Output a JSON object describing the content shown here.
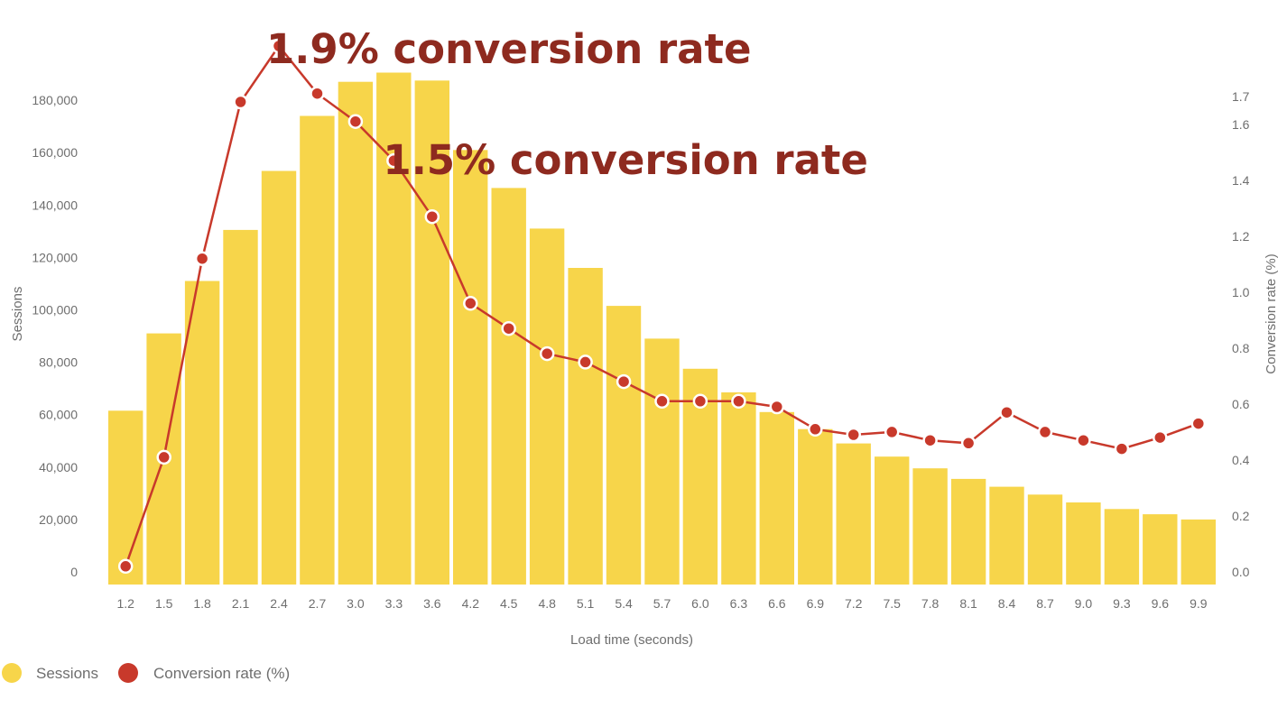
{
  "chart_data": {
    "type": "bar",
    "categories": [
      "1.2",
      "1.5",
      "1.8",
      "2.1",
      "2.4",
      "2.7",
      "3.0",
      "3.3",
      "3.6",
      "4.2",
      "4.5",
      "4.8",
      "5.1",
      "5.4",
      "5.7",
      "6.0",
      "6.3",
      "6.6",
      "6.9",
      "7.2",
      "7.5",
      "7.8",
      "8.1",
      "8.4",
      "8.7",
      "9.0",
      "9.3",
      "9.6",
      "9.9"
    ],
    "series": [
      {
        "name": "Sessions",
        "type": "bar",
        "axis": "left",
        "color": "#f7d54a",
        "values": [
          61500,
          91000,
          111000,
          130500,
          153000,
          174000,
          187000,
          190500,
          187500,
          161000,
          146500,
          131000,
          116000,
          101500,
          89000,
          77500,
          68500,
          61000,
          54500,
          49000,
          44000,
          39500,
          35500,
          32500,
          29500,
          26500,
          24000,
          22000,
          20000
        ]
      },
      {
        "name": "Conversion rate (%)",
        "type": "line",
        "axis": "right",
        "color": "#c8392b",
        "values": [
          0.02,
          0.41,
          1.12,
          1.68,
          1.88,
          1.71,
          1.61,
          1.47,
          1.27,
          0.96,
          0.87,
          0.78,
          0.75,
          0.68,
          0.61,
          0.61,
          0.61,
          0.59,
          0.51,
          0.49,
          0.5,
          0.47,
          0.46,
          0.57,
          0.5,
          0.47,
          0.44,
          0.48,
          0.53
        ]
      }
    ],
    "xlabel": "Load time (seconds)",
    "ylabel": "Sessions",
    "y2label": "Conversion rate (%)",
    "ylim": [
      0,
      190000
    ],
    "yticks": [
      0,
      20000,
      40000,
      60000,
      80000,
      100000,
      120000,
      140000,
      160000,
      180000
    ],
    "ytick_labels": [
      "0",
      "20,000",
      "40,000",
      "60,000",
      "80,000",
      "100,000",
      "120,000",
      "140,000",
      "160,000",
      "180,000"
    ],
    "y2lim": [
      0,
      1.78
    ],
    "y2ticks": [
      0,
      0.2,
      0.4,
      0.6,
      0.8,
      1.0,
      1.2,
      1.4,
      1.6,
      1.7
    ],
    "y2tick_labels": [
      "0.0",
      "0.2",
      "0.4",
      "0.6",
      "0.8",
      "1.0",
      "1.2",
      "1.4",
      "1.6",
      "1.7"
    ],
    "grid": false,
    "legend_position": "bottom-left",
    "annotations": [
      {
        "text": "1.9% conversion rate",
        "category_index": 4,
        "series": "Conversion rate (%)"
      },
      {
        "text": "1.5% conversion rate",
        "category_index": 7,
        "series": "Conversion rate (%)"
      }
    ]
  }
}
